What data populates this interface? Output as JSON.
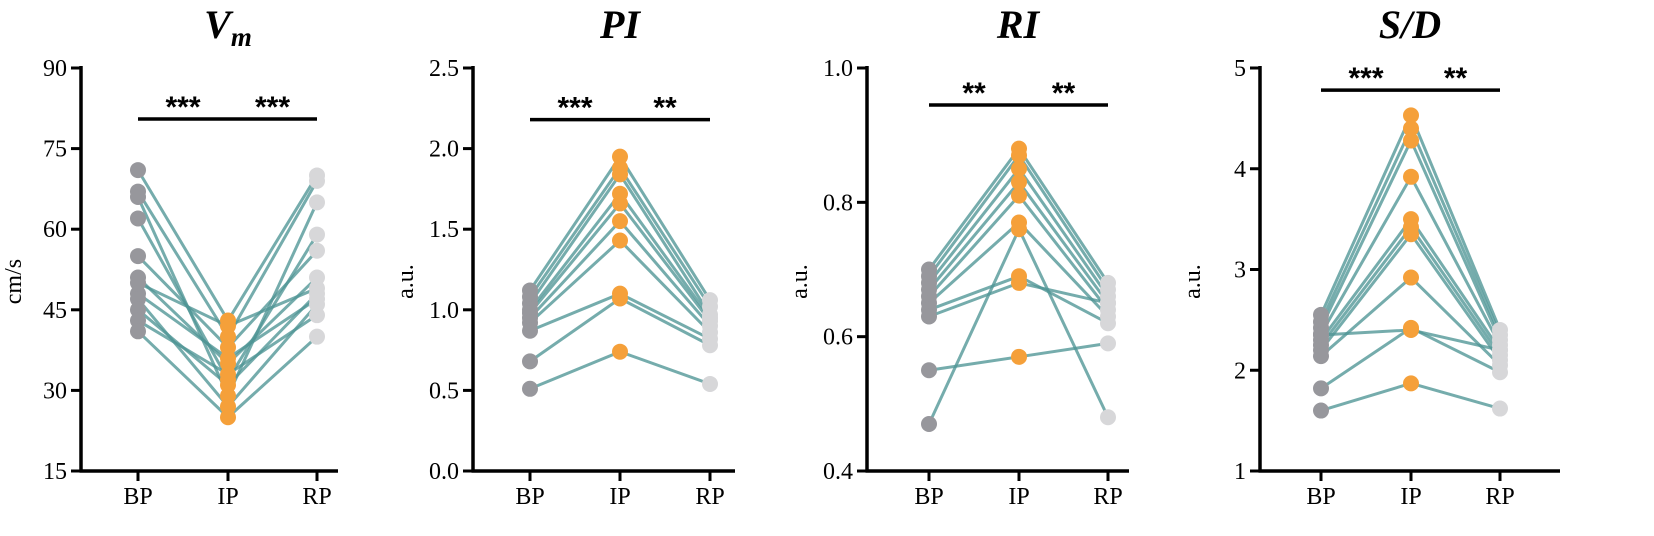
{
  "colors": {
    "line": "#4e9595",
    "BP": "#97979c",
    "IP": "#f5a03a",
    "RP": "#d7d7d9",
    "axis": "#000000"
  },
  "chart_data": [
    {
      "type": "scatter",
      "title": "Vm",
      "title_main": "V",
      "title_sub": "m",
      "ylabel": "cm/s",
      "categories": [
        "BP",
        "IP",
        "RP"
      ],
      "ylim": [
        15,
        90
      ],
      "yticks": [
        "15",
        "30",
        "45",
        "60",
        "75",
        "90"
      ],
      "significance": [
        {
          "from": "BP",
          "to": "IP",
          "label": "***"
        },
        {
          "from": "IP",
          "to": "RP",
          "label": "***"
        }
      ],
      "bracket_y": 80.5,
      "subjects": [
        [
          71,
          43,
          70
        ],
        [
          67,
          40,
          69
        ],
        [
          66,
          29,
          65
        ],
        [
          62,
          32,
          59
        ],
        [
          55,
          38,
          56
        ],
        [
          51,
          35,
          51
        ],
        [
          50,
          42,
          49
        ],
        [
          48,
          36,
          47
        ],
        [
          47,
          27,
          46
        ],
        [
          45,
          31,
          48
        ],
        [
          43,
          33,
          44
        ],
        [
          41,
          25,
          40
        ]
      ]
    },
    {
      "type": "scatter",
      "title": "PI",
      "ylabel": "a.u.",
      "categories": [
        "BP",
        "IP",
        "RP"
      ],
      "ylim": [
        0,
        2.5
      ],
      "yticks": [
        "0.0",
        "0.5",
        "1.0",
        "1.5",
        "2.0",
        "2.5"
      ],
      "significance": [
        {
          "from": "BP",
          "to": "IP",
          "label": "***"
        },
        {
          "from": "IP",
          "to": "RP",
          "label": "**"
        }
      ],
      "bracket_y": 2.18,
      "subjects": [
        [
          1.12,
          1.95,
          1.06
        ],
        [
          1.08,
          1.88,
          1.02
        ],
        [
          1.04,
          1.84,
          0.97
        ],
        [
          1.0,
          1.72,
          0.95
        ],
        [
          0.98,
          1.66,
          0.93
        ],
        [
          0.95,
          1.55,
          0.9
        ],
        [
          0.92,
          1.43,
          0.86
        ],
        [
          0.87,
          1.1,
          0.82
        ],
        [
          0.68,
          1.07,
          0.78
        ],
        [
          0.51,
          0.74,
          0.54
        ]
      ]
    },
    {
      "type": "scatter",
      "title": "RI",
      "ylabel": "a.u.",
      "categories": [
        "BP",
        "IP",
        "RP"
      ],
      "ylim": [
        0.4,
        1.0
      ],
      "yticks": [
        "0.4",
        "0.6",
        "0.8",
        "1.0"
      ],
      "significance": [
        {
          "from": "BP",
          "to": "IP",
          "label": "**"
        },
        {
          "from": "IP",
          "to": "RP",
          "label": "**"
        }
      ],
      "bracket_y": 0.945,
      "subjects": [
        [
          0.7,
          0.88,
          0.68
        ],
        [
          0.69,
          0.87,
          0.67
        ],
        [
          0.68,
          0.85,
          0.66
        ],
        [
          0.67,
          0.83,
          0.65
        ],
        [
          0.66,
          0.81,
          0.64
        ],
        [
          0.65,
          0.77,
          0.63
        ],
        [
          0.64,
          0.69,
          0.62
        ],
        [
          0.63,
          0.68,
          0.65
        ],
        [
          0.55,
          0.57,
          0.59
        ],
        [
          0.47,
          0.76,
          0.48
        ]
      ]
    },
    {
      "type": "scatter",
      "title": "S/D",
      "ylabel": "a.u.",
      "categories": [
        "BP",
        "IP",
        "RP"
      ],
      "ylim": [
        1,
        5
      ],
      "yticks": [
        "1",
        "2",
        "3",
        "4",
        "5"
      ],
      "significance": [
        {
          "from": "BP",
          "to": "IP",
          "label": "***"
        },
        {
          "from": "IP",
          "to": "RP",
          "label": "**"
        }
      ],
      "bracket_y": 4.78,
      "subjects": [
        [
          2.55,
          4.53,
          2.4
        ],
        [
          2.48,
          4.4,
          2.35
        ],
        [
          2.42,
          4.28,
          2.3
        ],
        [
          2.36,
          3.92,
          2.25
        ],
        [
          2.3,
          3.5,
          2.2
        ],
        [
          2.25,
          3.42,
          2.15
        ],
        [
          2.2,
          3.35,
          2.1
        ],
        [
          2.14,
          2.92,
          2.05
        ],
        [
          1.82,
          2.42,
          1.98
        ],
        [
          1.6,
          1.87,
          1.62
        ],
        [
          2.35,
          2.4,
          2.2
        ]
      ]
    }
  ]
}
